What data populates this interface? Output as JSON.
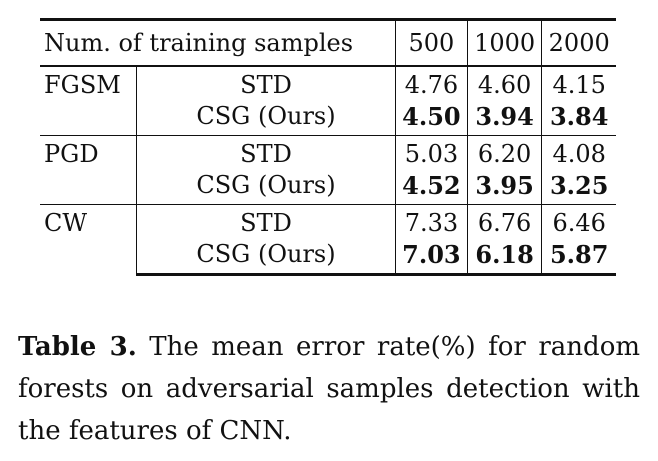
{
  "table": {
    "header": {
      "label": "Num. of training samples",
      "columns": [
        "500",
        "1000",
        "2000"
      ]
    },
    "groups": [
      {
        "attack": "FGSM",
        "rows": [
          {
            "method": "STD",
            "values": [
              "4.76",
              "4.60",
              "4.15"
            ],
            "bold": false
          },
          {
            "method": "CSG (Ours)",
            "values": [
              "4.50",
              "3.94",
              "3.84"
            ],
            "bold": true
          }
        ]
      },
      {
        "attack": "PGD",
        "rows": [
          {
            "method": "STD",
            "values": [
              "5.03",
              "6.20",
              "4.08"
            ],
            "bold": false
          },
          {
            "method": "CSG (Ours)",
            "values": [
              "4.52",
              "3.95",
              "3.25"
            ],
            "bold": true
          }
        ]
      },
      {
        "attack": "CW",
        "rows": [
          {
            "method": "STD",
            "values": [
              "7.33",
              "6.76",
              "6.46"
            ],
            "bold": false
          },
          {
            "method": "CSG (Ours)",
            "values": [
              "7.03",
              "6.18",
              "5.87"
            ],
            "bold": true
          }
        ]
      }
    ]
  },
  "caption": {
    "label": "Table 3.",
    "text": " The mean error rate(%) for random forests on adversarial samples detection with the features of CNN."
  }
}
